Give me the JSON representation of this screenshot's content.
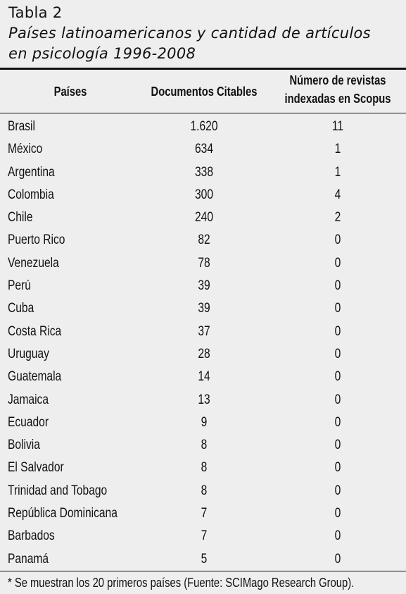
{
  "caption": {
    "label": "Tabla 2",
    "title_line1": "Países latinoamericanos y cantidad de artículos",
    "title_line2": "en psicología 1996-2008"
  },
  "table": {
    "headers": {
      "country": "Países",
      "documents": "Documentos Citables",
      "journals_line1": "Número de revistas",
      "journals_line2": "indexadas en Scopus"
    },
    "rows": [
      {
        "country": "Brasil",
        "documents": "1.620",
        "journals": "11"
      },
      {
        "country": "México",
        "documents": "634",
        "journals": "1"
      },
      {
        "country": "Argentina",
        "documents": "338",
        "journals": "1"
      },
      {
        "country": "Colombia",
        "documents": "300",
        "journals": "4"
      },
      {
        "country": "Chile",
        "documents": "240",
        "journals": "2"
      },
      {
        "country": "Puerto Rico",
        "documents": "82",
        "journals": "0"
      },
      {
        "country": "Venezuela",
        "documents": "78",
        "journals": "0"
      },
      {
        "country": "Perú",
        "documents": "39",
        "journals": "0"
      },
      {
        "country": "Cuba",
        "documents": "39",
        "journals": "0"
      },
      {
        "country": "Costa Rica",
        "documents": "37",
        "journals": "0"
      },
      {
        "country": "Uruguay",
        "documents": "28",
        "journals": "0"
      },
      {
        "country": "Guatemala",
        "documents": "14",
        "journals": "0"
      },
      {
        "country": "Jamaica",
        "documents": "13",
        "journals": "0"
      },
      {
        "country": "Ecuador",
        "documents": "9",
        "journals": "0"
      },
      {
        "country": "Bolivia",
        "documents": "8",
        "journals": "0"
      },
      {
        "country": "El Salvador",
        "documents": "8",
        "journals": "0"
      },
      {
        "country": "Trinidad and Tobago",
        "documents": "8",
        "journals": "0"
      },
      {
        "country": "República Dominicana",
        "documents": "7",
        "journals": "0"
      },
      {
        "country": "Barbados",
        "documents": "7",
        "journals": "0"
      },
      {
        "country": "Panamá",
        "documents": "5",
        "journals": "0"
      }
    ],
    "footnote": "* Se muestran los 20 primeros países (Fuente: SCIMago Research Group)."
  },
  "colors": {
    "background": "#eeeeee",
    "text": "#111111",
    "rules": "#111111"
  }
}
